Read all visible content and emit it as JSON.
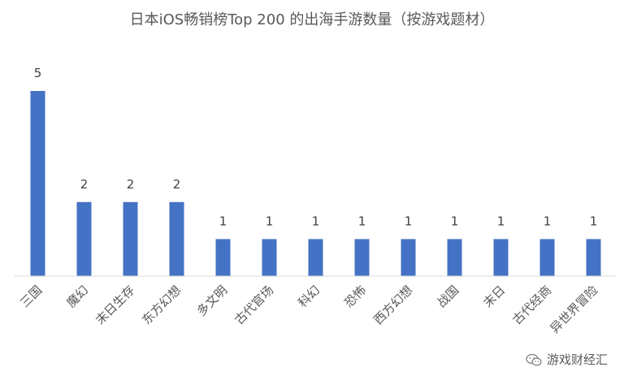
{
  "chart_data": {
    "type": "bar",
    "title": "日本iOS畅销榜Top 200 的出海手游数量（按游戏题材）",
    "categories": [
      "三国",
      "魔幻",
      "末日生存",
      "东方幻想",
      "多文明",
      "古代官场",
      "科幻",
      "恐怖",
      "西方幻想",
      "战国",
      "末日",
      "古代经商",
      "异世界冒险"
    ],
    "values": [
      5,
      2,
      2,
      2,
      1,
      1,
      1,
      1,
      1,
      1,
      1,
      1,
      1
    ],
    "xlabel": "",
    "ylabel": "",
    "ylim": [
      0,
      5
    ],
    "grid": false,
    "legend": "none",
    "bar_color": "#4472C4",
    "axis_color": "#D9D9D9"
  },
  "watermark": {
    "text": "游戏财经汇",
    "icon": "wechat-icon"
  }
}
